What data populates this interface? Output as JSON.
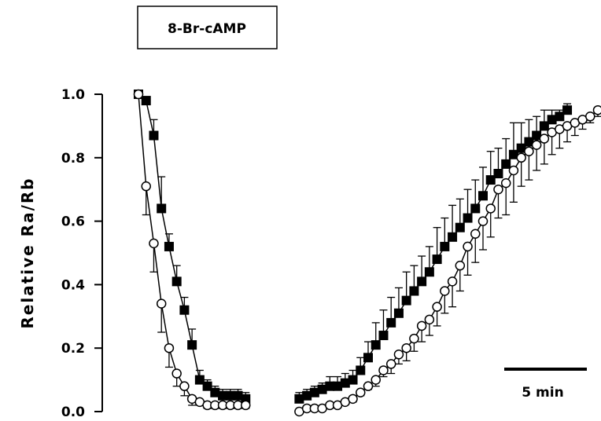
{
  "chart_data": {
    "type": "scatter",
    "title": "",
    "treatment_label": "8-Br-cAMP",
    "xlabel": "",
    "ylabel": "Relative Ra/Rb",
    "ylim": [
      0,
      1.0
    ],
    "xlim": [
      0,
      60
    ],
    "grid": false,
    "y_ticks": [
      "0.0",
      "0.2",
      "0.4",
      "0.6",
      "0.8",
      "1.0"
    ],
    "scale_bar": {
      "label": "5 min",
      "length_min": 5
    },
    "series": [
      {
        "marker": "filled-square",
        "segments": [
          {
            "x": [
              0,
              1,
              2,
              3,
              4,
              5,
              6,
              7,
              8,
              9,
              10,
              11,
              12,
              13,
              14
            ],
            "y": [
              1.0,
              0.98,
              0.87,
              0.64,
              0.52,
              0.41,
              0.32,
              0.21,
              0.1,
              0.08,
              0.06,
              0.05,
              0.05,
              0.05,
              0.04
            ],
            "err": [
              0,
              0,
              0.05,
              0.1,
              0.04,
              0.05,
              0.04,
              0.05,
              0.03,
              0.02,
              0.02,
              0.02,
              0.02,
              0.02,
              0.02
            ]
          },
          {
            "x": [
              21,
              22,
              23,
              24,
              25,
              26,
              27,
              28,
              29,
              30,
              31,
              32,
              33,
              34,
              35,
              36,
              37,
              38,
              39,
              40,
              41,
              42,
              43,
              44,
              45,
              46,
              47,
              48,
              49,
              50,
              51,
              52,
              53,
              54,
              55,
              56
            ],
            "y": [
              0.04,
              0.05,
              0.06,
              0.07,
              0.08,
              0.08,
              0.09,
              0.1,
              0.13,
              0.17,
              0.21,
              0.24,
              0.28,
              0.31,
              0.35,
              0.38,
              0.41,
              0.44,
              0.48,
              0.52,
              0.55,
              0.58,
              0.61,
              0.64,
              0.68,
              0.73,
              0.75,
              0.78,
              0.81,
              0.83,
              0.85,
              0.87,
              0.9,
              0.92,
              0.93,
              0.95
            ],
            "err": [
              0.02,
              0.02,
              0.02,
              0.02,
              0.03,
              0.03,
              0.03,
              0.03,
              0.04,
              0.05,
              0.07,
              0.08,
              0.08,
              0.08,
              0.09,
              0.08,
              0.08,
              0.08,
              0.1,
              0.09,
              0.1,
              0.09,
              0.09,
              0.09,
              0.09,
              0.09,
              0.08,
              0.08,
              0.1,
              0.08,
              0.07,
              0.06,
              0.05,
              0.03,
              0.02,
              0.02
            ]
          }
        ]
      },
      {
        "marker": "open-circle",
        "segments": [
          {
            "x": [
              0,
              1,
              2,
              3,
              4,
              5,
              6,
              7,
              8,
              9,
              10,
              11,
              12,
              13,
              14
            ],
            "y": [
              1.0,
              0.71,
              0.53,
              0.34,
              0.2,
              0.12,
              0.08,
              0.04,
              0.03,
              0.02,
              0.02,
              0.02,
              0.02,
              0.02,
              0.02
            ],
            "err": [
              0,
              0.09,
              0.09,
              0.09,
              0.06,
              0.04,
              0.03,
              0.02,
              0.01,
              0.01,
              0.01,
              0.01,
              0.01,
              0.01,
              0.01
            ]
          },
          {
            "x": [
              21,
              22,
              23,
              24,
              25,
              26,
              27,
              28,
              29,
              30,
              31,
              32,
              33,
              34,
              35,
              36,
              37,
              38,
              39,
              40,
              41,
              42,
              43,
              44,
              45,
              46,
              47,
              48,
              49,
              50,
              51,
              52,
              53,
              54,
              55,
              56,
              57,
              58,
              59,
              60
            ],
            "y": [
              0.0,
              0.01,
              0.01,
              0.01,
              0.02,
              0.02,
              0.03,
              0.04,
              0.06,
              0.08,
              0.1,
              0.13,
              0.15,
              0.18,
              0.2,
              0.23,
              0.27,
              0.29,
              0.33,
              0.38,
              0.41,
              0.46,
              0.52,
              0.56,
              0.6,
              0.64,
              0.7,
              0.72,
              0.76,
              0.8,
              0.82,
              0.84,
              0.86,
              0.88,
              0.89,
              0.9,
              0.91,
              0.92,
              0.93,
              0.95
            ],
            "err": [
              0,
              0,
              0,
              0,
              0,
              0,
              0,
              0.01,
              0.01,
              0.01,
              0.02,
              0.02,
              0.03,
              0.03,
              0.04,
              0.04,
              0.05,
              0.05,
              0.06,
              0.07,
              0.08,
              0.08,
              0.09,
              0.09,
              0.09,
              0.09,
              0.09,
              0.1,
              0.1,
              0.09,
              0.09,
              0.08,
              0.08,
              0.07,
              0.06,
              0.05,
              0.04,
              0.03,
              0.02,
              0.02
            ]
          }
        ]
      }
    ]
  }
}
